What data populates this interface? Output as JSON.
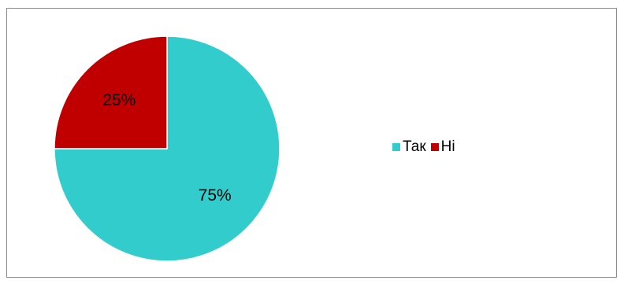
{
  "chart_data": {
    "type": "pie",
    "categories": [
      "Так",
      "Ні"
    ],
    "values": [
      75,
      25
    ],
    "labels": [
      "75%",
      "25%"
    ],
    "colors": [
      "#33CCCC",
      "#C00000"
    ],
    "legend_position": "right",
    "start_angle_deg": 0,
    "direction": "clockwise"
  }
}
